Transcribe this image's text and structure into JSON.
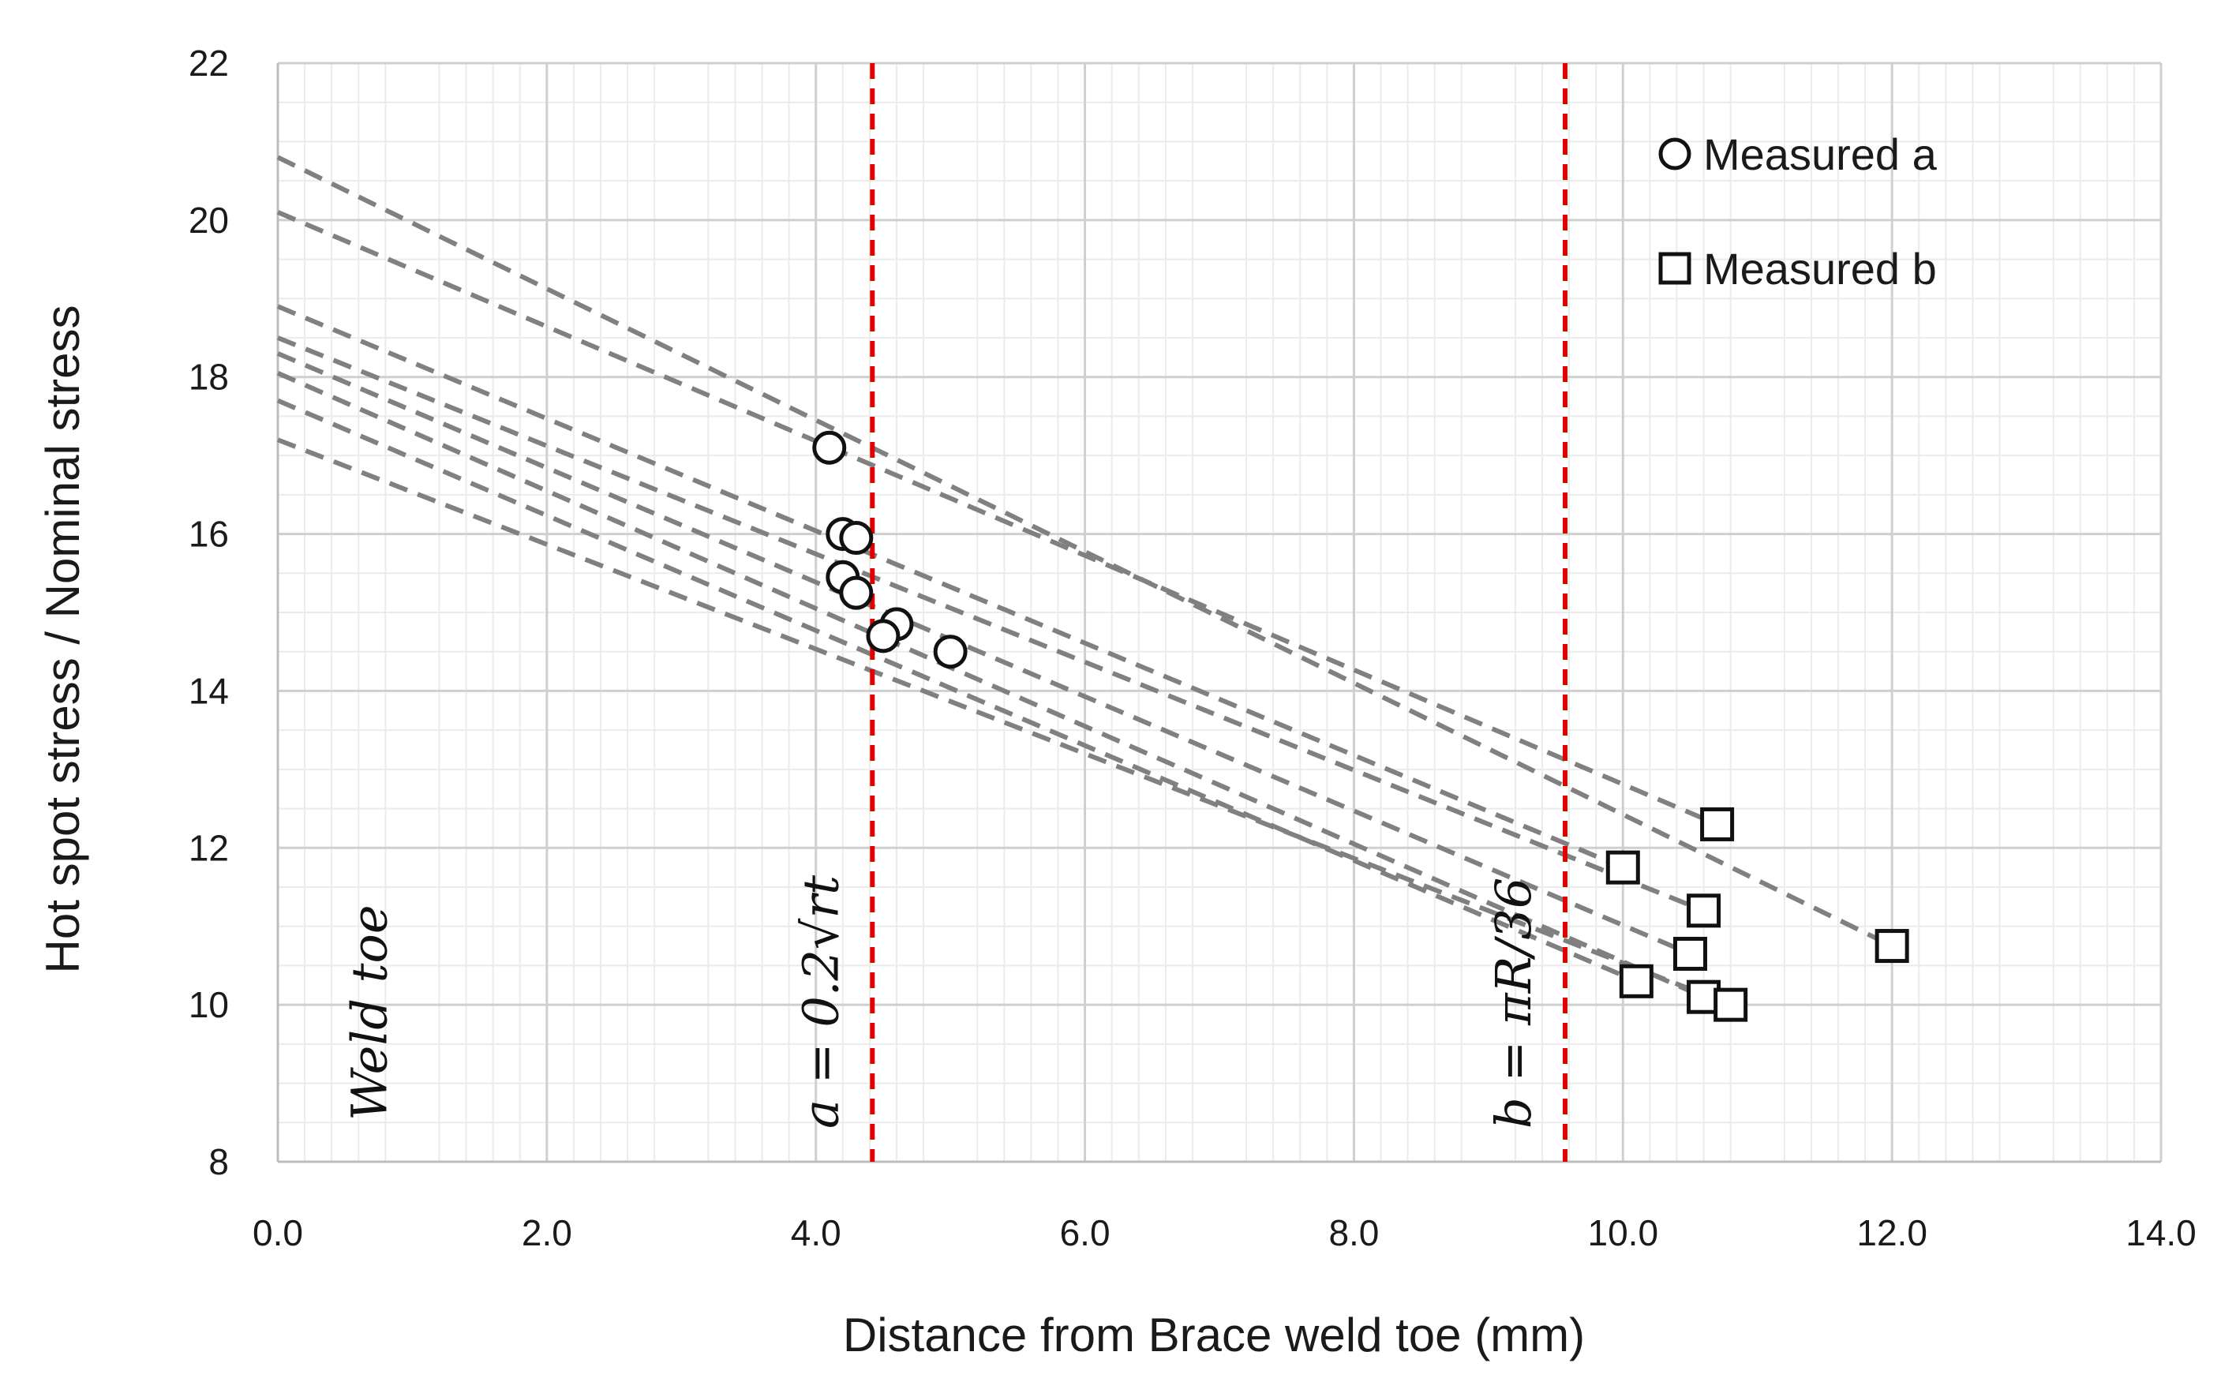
{
  "chart_data": {
    "type": "scatter",
    "title": "",
    "xlabel": "Distance from Brace weld toe (mm)",
    "ylabel": "Hot spot stress / Nominal stress",
    "xlim": [
      0,
      14
    ],
    "ylim": [
      8,
      22
    ],
    "x_ticks": [
      "0.0",
      "2.0",
      "4.0",
      "6.0",
      "8.0",
      "10.0",
      "12.0",
      "14.0"
    ],
    "y_ticks": [
      "8",
      "10",
      "12",
      "14",
      "16",
      "18",
      "20",
      "22"
    ],
    "major_grid": true,
    "minor_grid": true,
    "legend_position": "top-right",
    "series": [
      {
        "name": "Measured a",
        "marker": "circle",
        "points": [
          [
            4.1,
            17.1
          ],
          [
            4.2,
            16.0
          ],
          [
            4.3,
            15.95
          ],
          [
            4.2,
            15.45
          ],
          [
            4.3,
            15.25
          ],
          [
            4.6,
            14.85
          ],
          [
            4.5,
            14.7
          ],
          [
            5.0,
            14.5
          ]
        ]
      },
      {
        "name": "Measured b",
        "marker": "square",
        "points": [
          [
            10.7,
            12.3
          ],
          [
            10.0,
            11.75
          ],
          [
            10.6,
            11.2
          ],
          [
            12.0,
            10.75
          ],
          [
            10.1,
            10.3
          ],
          [
            10.5,
            10.65
          ],
          [
            10.6,
            10.1
          ],
          [
            10.8,
            10.0
          ]
        ]
      }
    ],
    "extrapolation_lines": [
      {
        "from": [
          0,
          20.8
        ],
        "to": [
          12.0,
          10.75
        ]
      },
      {
        "from": [
          0,
          20.1
        ],
        "to": [
          10.7,
          12.3
        ]
      },
      {
        "from": [
          0,
          18.9
        ],
        "to": [
          10.0,
          11.75
        ]
      },
      {
        "from": [
          0,
          18.5
        ],
        "to": [
          10.6,
          11.2
        ]
      },
      {
        "from": [
          0,
          18.3
        ],
        "to": [
          10.5,
          10.65
        ]
      },
      {
        "from": [
          0,
          18.05
        ],
        "to": [
          10.6,
          10.1
        ]
      },
      {
        "from": [
          0,
          17.7
        ],
        "to": [
          10.1,
          10.3
        ]
      },
      {
        "from": [
          0,
          17.2
        ],
        "to": [
          10.8,
          10.0
        ]
      }
    ],
    "reference_lines": [
      {
        "x": 4.42,
        "label": "a = 0.2√rt",
        "color": "#e00000"
      },
      {
        "x": 9.57,
        "label": "b = πR/36",
        "color": "#e00000"
      }
    ],
    "annotations": [
      {
        "text": "Weld toe",
        "x": 0.35,
        "y": 9.2
      }
    ]
  }
}
